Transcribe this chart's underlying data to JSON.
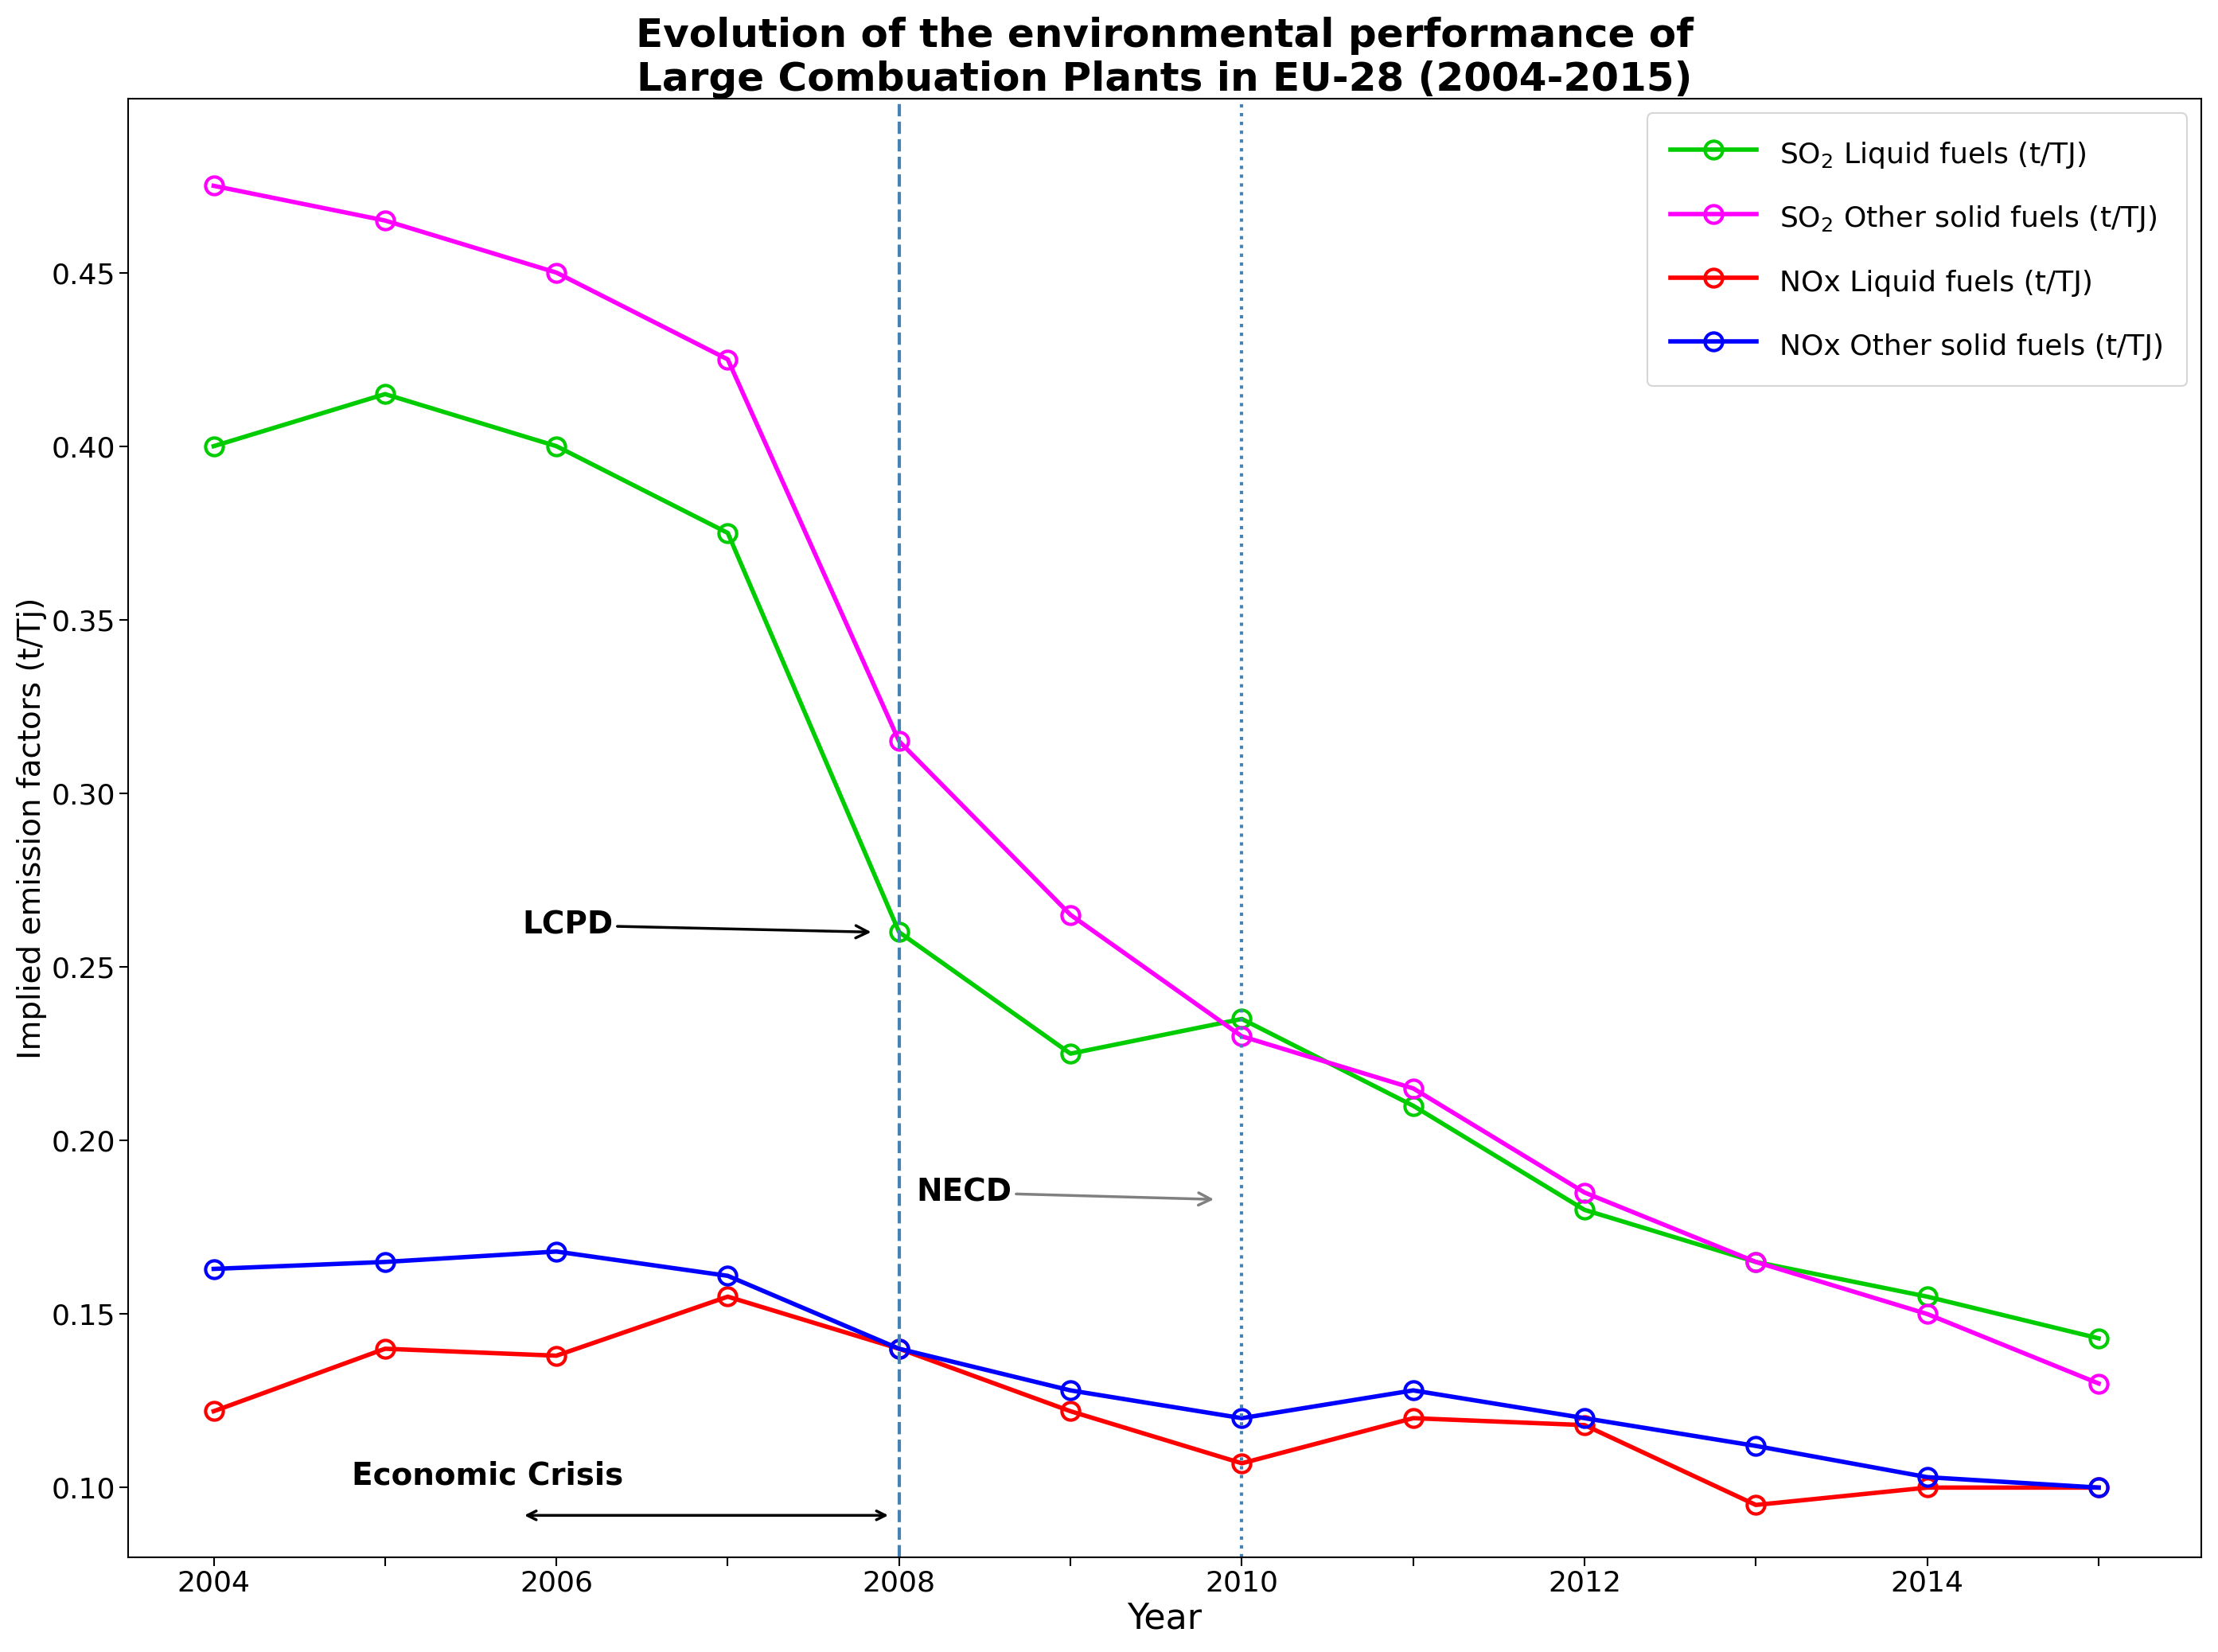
{
  "title": "Evolution of the environmental performance of\nLarge Combuation Plants in EU-28 (2004-2015)",
  "xlabel": "Year",
  "ylabel": "Implied emission factors (t/Tj)",
  "years": [
    2004,
    2005,
    2006,
    2007,
    2008,
    2009,
    2010,
    2011,
    2012,
    2013,
    2014,
    2015
  ],
  "so2_liquid": [
    0.4,
    0.415,
    0.4,
    0.375,
    0.26,
    0.225,
    0.235,
    0.21,
    0.18,
    0.165,
    0.155,
    0.143
  ],
  "so2_solid": [
    0.475,
    0.465,
    0.45,
    0.425,
    0.315,
    0.265,
    0.23,
    0.215,
    0.185,
    0.165,
    0.15,
    0.13
  ],
  "nox_liquid": [
    0.122,
    0.14,
    0.138,
    0.155,
    0.14,
    0.122,
    0.107,
    0.12,
    0.118,
    0.095,
    0.1,
    0.1
  ],
  "nox_solid": [
    0.163,
    0.165,
    0.168,
    0.161,
    0.14,
    0.128,
    0.12,
    0.128,
    0.12,
    0.112,
    0.103,
    0.1
  ],
  "so2_liquid_color": "#00cc00",
  "so2_solid_color": "#ff00ff",
  "nox_liquid_color": "#ff0000",
  "nox_solid_color": "#0000ff",
  "lcpd_year": 2008,
  "necd_year": 2010,
  "ylim": [
    0.08,
    0.5
  ],
  "yticks": [
    0.1,
    0.15,
    0.2,
    0.25,
    0.3,
    0.35,
    0.4,
    0.45
  ],
  "background_color": "#ffffff",
  "legend_labels": [
    "SO$_2$ Liquid fuels (t/TJ)",
    "SO$_2$ Other solid fuels (t/TJ)",
    "NOx Liquid fuels (t/TJ)",
    "NOx Other solid fuels (t/TJ)"
  ]
}
